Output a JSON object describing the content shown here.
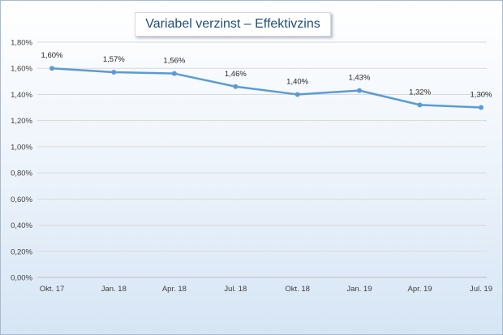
{
  "chart_data": {
    "type": "line",
    "title": "Variabel verzinst – Effektivzins",
    "categories": [
      "Okt. 17",
      "Jan. 18",
      "Apr. 18",
      "Jul. 18",
      "Okt. 18",
      "Jan. 19",
      "Apr. 19",
      "Jul. 19"
    ],
    "x_days": [
      0,
      92,
      182,
      273,
      365,
      457,
      547,
      638
    ],
    "series": [
      {
        "values": [
          1.6,
          1.57,
          1.56,
          1.46,
          1.4,
          1.43,
          1.32,
          1.3
        ],
        "labels": [
          "1,60%",
          "1,57%",
          "1,56%",
          "1,46%",
          "1,40%",
          "1,43%",
          "1,32%",
          "1,30%"
        ],
        "color": "#5b9bd5"
      }
    ],
    "yticks": [
      "0,00%",
      "0,20%",
      "0,40%",
      "0,60%",
      "0,80%",
      "1,00%",
      "1,20%",
      "1,40%",
      "1,60%",
      "1,80%"
    ],
    "ylim": [
      0,
      1.8
    ],
    "grid": true,
    "legend": "none"
  }
}
